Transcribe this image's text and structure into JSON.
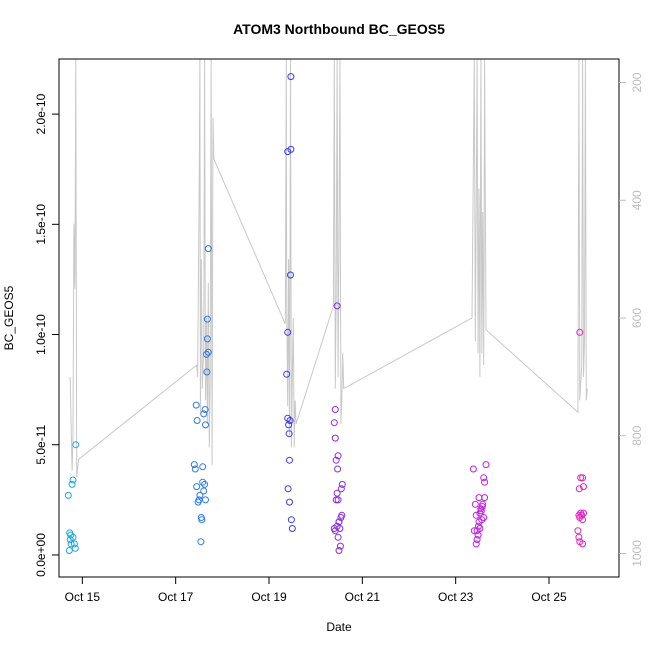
{
  "chart_data": {
    "type": "scatter",
    "title": "ATOM3 Northbound BC_GEOS5",
    "xlabel": "Date",
    "ylabel": "BC_GEOS5",
    "xlim": [
      14.5,
      26.5
    ],
    "ylim": [
      -1e-11,
      2.25e-10
    ],
    "x_ticks": [
      {
        "value": 15,
        "label": "Oct 15"
      },
      {
        "value": 17,
        "label": "Oct 17"
      },
      {
        "value": 19,
        "label": "Oct 19"
      },
      {
        "value": 21,
        "label": "Oct 21"
      },
      {
        "value": 23,
        "label": "Oct 23"
      },
      {
        "value": 25,
        "label": "Oct 25"
      }
    ],
    "y_ticks": [
      {
        "value": 0,
        "label": "0.0e+00"
      },
      {
        "value": 5e-11,
        "label": "5.0e-11"
      },
      {
        "value": 1e-10,
        "label": "1.0e-10"
      },
      {
        "value": 1.5e-10,
        "label": "1.5e-10"
      },
      {
        "value": 2e-10,
        "label": "2.0e-10"
      }
    ],
    "y2_lim": [
      1040,
      160
    ],
    "y2_ticks": [
      {
        "value": 200,
        "label": "200"
      },
      {
        "value": 400,
        "label": "400"
      },
      {
        "value": 600,
        "label": "600"
      },
      {
        "value": 800,
        "label": "800"
      },
      {
        "value": 1000,
        "label": "1000"
      }
    ],
    "pressure_line": [
      [
        14.74,
        700
      ],
      [
        14.76,
        780
      ],
      [
        14.78,
        860
      ],
      [
        14.8,
        800
      ],
      [
        14.82,
        440
      ],
      [
        14.84,
        550
      ],
      [
        14.86,
        100
      ],
      [
        14.88,
        870
      ],
      [
        14.92,
        840
      ],
      [
        17.45,
        680
      ],
      [
        17.47,
        700
      ],
      [
        17.5,
        420
      ],
      [
        17.52,
        100
      ],
      [
        17.53,
        760
      ],
      [
        17.55,
        500
      ],
      [
        17.57,
        720
      ],
      [
        17.6,
        650
      ],
      [
        17.62,
        100
      ],
      [
        17.64,
        740
      ],
      [
        17.66,
        600
      ],
      [
        17.68,
        780
      ],
      [
        17.7,
        540
      ],
      [
        17.72,
        820
      ],
      [
        17.74,
        700
      ],
      [
        17.76,
        100
      ],
      [
        17.78,
        850
      ],
      [
        17.8,
        260
      ],
      [
        17.82,
        330
      ],
      [
        19.35,
        610
      ],
      [
        19.37,
        100
      ],
      [
        19.38,
        580
      ],
      [
        19.4,
        750
      ],
      [
        19.42,
        500
      ],
      [
        19.44,
        800
      ],
      [
        19.46,
        100
      ],
      [
        19.48,
        820
      ],
      [
        19.5,
        700
      ],
      [
        19.52,
        600
      ],
      [
        19.54,
        820
      ],
      [
        19.56,
        740
      ],
      [
        19.58,
        780
      ],
      [
        20.38,
        580
      ],
      [
        20.4,
        100
      ],
      [
        20.42,
        720
      ],
      [
        20.44,
        560
      ],
      [
        20.46,
        100
      ],
      [
        20.48,
        700
      ],
      [
        20.5,
        460
      ],
      [
        20.52,
        100
      ],
      [
        20.54,
        780
      ],
      [
        20.56,
        740
      ],
      [
        20.58,
        660
      ],
      [
        20.6,
        720
      ],
      [
        23.35,
        600
      ],
      [
        23.4,
        100
      ],
      [
        23.42,
        640
      ],
      [
        23.44,
        420
      ],
      [
        23.46,
        100
      ],
      [
        23.48,
        660
      ],
      [
        23.5,
        380
      ],
      [
        23.52,
        700
      ],
      [
        23.54,
        100
      ],
      [
        23.56,
        660
      ],
      [
        23.58,
        420
      ],
      [
        23.6,
        680
      ],
      [
        23.62,
        100
      ],
      [
        23.65,
        620
      ],
      [
        25.62,
        760
      ],
      [
        25.64,
        100
      ],
      [
        25.66,
        740
      ],
      [
        25.7,
        680
      ],
      [
        25.72,
        100
      ],
      [
        25.74,
        700
      ],
      [
        25.76,
        640
      ],
      [
        25.78,
        100
      ],
      [
        25.8,
        740
      ],
      [
        25.82,
        720
      ]
    ],
    "points": [
      {
        "x": 14.7,
        "y": 2.7e-11,
        "color": "#1EA7E1"
      },
      {
        "x": 14.75,
        "y": 9e-12,
        "color": "#1EA7E1"
      },
      {
        "x": 14.74,
        "y": 7e-12,
        "color": "#1EA7E1"
      },
      {
        "x": 14.76,
        "y": 5e-12,
        "color": "#1EA7E1"
      },
      {
        "x": 14.78,
        "y": 3.2e-11,
        "color": "#1EA7E1"
      },
      {
        "x": 14.8,
        "y": 3.4e-11,
        "color": "#1EA7E1"
      },
      {
        "x": 14.8,
        "y": 8e-12,
        "color": "#1EA7E1"
      },
      {
        "x": 14.83,
        "y": 5e-12,
        "color": "#1EA7E1"
      },
      {
        "x": 14.85,
        "y": 3e-12,
        "color": "#1EA7E1"
      },
      {
        "x": 14.72,
        "y": 2e-12,
        "color": "#1EA7E1"
      },
      {
        "x": 14.73,
        "y": 1e-11,
        "color": "#1EA7E1"
      },
      {
        "x": 14.86,
        "y": 5e-11,
        "color": "#1EA7E1"
      },
      {
        "x": 17.4,
        "y": 4.1e-11,
        "color": "#2E7BE6"
      },
      {
        "x": 17.42,
        "y": 3.9e-11,
        "color": "#2E7BE6"
      },
      {
        "x": 17.45,
        "y": 3.1e-11,
        "color": "#2E7BE6"
      },
      {
        "x": 17.48,
        "y": 2.4e-11,
        "color": "#2E7BE6"
      },
      {
        "x": 17.5,
        "y": 2.5e-11,
        "color": "#2E7BE6"
      },
      {
        "x": 17.52,
        "y": 2.7e-11,
        "color": "#2E7BE6"
      },
      {
        "x": 17.55,
        "y": 1.7e-11,
        "color": "#2E7BE6"
      },
      {
        "x": 17.56,
        "y": 1.6e-11,
        "color": "#2E7BE6"
      },
      {
        "x": 17.58,
        "y": 3.3e-11,
        "color": "#2E7BE6"
      },
      {
        "x": 17.6,
        "y": 2.9e-11,
        "color": "#2E7BE6"
      },
      {
        "x": 17.62,
        "y": 3.2e-11,
        "color": "#2E7BE6"
      },
      {
        "x": 17.64,
        "y": 2.5e-11,
        "color": "#2E7BE6"
      },
      {
        "x": 17.44,
        "y": 6.8e-11,
        "color": "#2E7BE6"
      },
      {
        "x": 17.46,
        "y": 6.1e-11,
        "color": "#2E7BE6"
      },
      {
        "x": 17.58,
        "y": 4e-11,
        "color": "#2E7BE6"
      },
      {
        "x": 17.6,
        "y": 6.4e-11,
        "color": "#2E7BE6"
      },
      {
        "x": 17.63,
        "y": 6.6e-11,
        "color": "#2E7BE6"
      },
      {
        "x": 17.64,
        "y": 5.9e-11,
        "color": "#2E7BE6"
      },
      {
        "x": 17.66,
        "y": 9.1e-11,
        "color": "#2E7BE6"
      },
      {
        "x": 17.7,
        "y": 9.2e-11,
        "color": "#2E7BE6"
      },
      {
        "x": 17.68,
        "y": 9.8e-11,
        "color": "#2E7BE6"
      },
      {
        "x": 17.67,
        "y": 8.3e-11,
        "color": "#2E7BE6"
      },
      {
        "x": 17.68,
        "y": 1.07e-10,
        "color": "#2E7BE6"
      },
      {
        "x": 17.7,
        "y": 1.39e-10,
        "color": "#2E7BE6"
      },
      {
        "x": 17.54,
        "y": 6e-12,
        "color": "#2E7BE6"
      },
      {
        "x": 19.38,
        "y": 8.2e-11,
        "color": "#3A3AF0"
      },
      {
        "x": 19.4,
        "y": 1.01e-10,
        "color": "#3A3AF0"
      },
      {
        "x": 19.4,
        "y": 6.2e-11,
        "color": "#3A3AF0"
      },
      {
        "x": 19.42,
        "y": 5.9e-11,
        "color": "#3A3AF0"
      },
      {
        "x": 19.45,
        "y": 6.1e-11,
        "color": "#3A3AF0"
      },
      {
        "x": 19.43,
        "y": 5.5e-11,
        "color": "#3A3AF0"
      },
      {
        "x": 19.44,
        "y": 4.3e-11,
        "color": "#3A3AF0"
      },
      {
        "x": 19.41,
        "y": 3e-11,
        "color": "#3A3AF0"
      },
      {
        "x": 19.44,
        "y": 2.4e-11,
        "color": "#3A3AF0"
      },
      {
        "x": 19.48,
        "y": 1.6e-11,
        "color": "#3A3AF0"
      },
      {
        "x": 19.5,
        "y": 1.2e-11,
        "color": "#3A3AF0"
      },
      {
        "x": 19.4,
        "y": 1.83e-10,
        "color": "#3A3AF0"
      },
      {
        "x": 19.47,
        "y": 1.84e-10,
        "color": "#3A3AF0"
      },
      {
        "x": 19.46,
        "y": 1.27e-10,
        "color": "#3A3AF0"
      },
      {
        "x": 19.47,
        "y": 2.17e-10,
        "color": "#3A3AF0"
      },
      {
        "x": 20.4,
        "y": 1.2e-11,
        "color": "#8A2BE2"
      },
      {
        "x": 20.42,
        "y": 1.1e-11,
        "color": "#8A2BE2"
      },
      {
        "x": 20.46,
        "y": 1.3e-11,
        "color": "#8A2BE2"
      },
      {
        "x": 20.48,
        "y": 8e-12,
        "color": "#8A2BE2"
      },
      {
        "x": 20.5,
        "y": 1.5e-11,
        "color": "#8A2BE2"
      },
      {
        "x": 20.52,
        "y": 1.2e-11,
        "color": "#8A2BE2"
      },
      {
        "x": 20.54,
        "y": 1.7e-11,
        "color": "#8A2BE2"
      },
      {
        "x": 20.56,
        "y": 1.8e-11,
        "color": "#8A2BE2"
      },
      {
        "x": 20.5,
        "y": 1.5e-11,
        "color": "#8A2BE2"
      },
      {
        "x": 20.48,
        "y": 2.5e-11,
        "color": "#8A2BE2"
      },
      {
        "x": 20.46,
        "y": 2.8e-11,
        "color": "#8A2BE2"
      },
      {
        "x": 20.55,
        "y": 3e-11,
        "color": "#8A2BE2"
      },
      {
        "x": 20.57,
        "y": 3.2e-11,
        "color": "#8A2BE2"
      },
      {
        "x": 20.44,
        "y": 4.3e-11,
        "color": "#8A2BE2"
      },
      {
        "x": 20.48,
        "y": 4.5e-11,
        "color": "#8A2BE2"
      },
      {
        "x": 20.42,
        "y": 5.3e-11,
        "color": "#8A2BE2"
      },
      {
        "x": 20.4,
        "y": 6e-11,
        "color": "#8A2BE2"
      },
      {
        "x": 20.42,
        "y": 6.6e-11,
        "color": "#8A2BE2"
      },
      {
        "x": 20.47,
        "y": 3.9e-11,
        "color": "#8A2BE2"
      },
      {
        "x": 20.5,
        "y": 2e-12,
        "color": "#8A2BE2"
      },
      {
        "x": 20.53,
        "y": 4e-12,
        "color": "#8A2BE2"
      },
      {
        "x": 20.46,
        "y": 1.13e-10,
        "color": "#8A2BE2"
      },
      {
        "x": 20.44,
        "y": 2.5e-11,
        "color": "#8A2BE2"
      },
      {
        "x": 23.4,
        "y": 1.1e-11,
        "color": "#C01FE0"
      },
      {
        "x": 23.42,
        "y": 2.3e-11,
        "color": "#C01FE0"
      },
      {
        "x": 23.44,
        "y": 1.8e-11,
        "color": "#C01FE0"
      },
      {
        "x": 23.46,
        "y": 1.1e-11,
        "color": "#C01FE0"
      },
      {
        "x": 23.48,
        "y": 9e-12,
        "color": "#C01FE0"
      },
      {
        "x": 23.5,
        "y": 1.5e-11,
        "color": "#C01FE0"
      },
      {
        "x": 23.52,
        "y": 1.9e-11,
        "color": "#C01FE0"
      },
      {
        "x": 23.54,
        "y": 2.1e-11,
        "color": "#C01FE0"
      },
      {
        "x": 23.56,
        "y": 1.6e-11,
        "color": "#C01FE0"
      },
      {
        "x": 23.58,
        "y": 2.3e-11,
        "color": "#C01FE0"
      },
      {
        "x": 23.6,
        "y": 1.7e-11,
        "color": "#C01FE0"
      },
      {
        "x": 23.5,
        "y": 2.6e-11,
        "color": "#C01FE0"
      },
      {
        "x": 23.62,
        "y": 2.6e-11,
        "color": "#C01FE0"
      },
      {
        "x": 23.55,
        "y": 2e-11,
        "color": "#C01FE0"
      },
      {
        "x": 23.44,
        "y": 5e-12,
        "color": "#C01FE0"
      },
      {
        "x": 23.46,
        "y": 7e-12,
        "color": "#C01FE0"
      },
      {
        "x": 23.52,
        "y": 1.2e-11,
        "color": "#C01FE0"
      },
      {
        "x": 23.6,
        "y": 3.5e-11,
        "color": "#C01FE0"
      },
      {
        "x": 23.62,
        "y": 3.3e-11,
        "color": "#C01FE0"
      },
      {
        "x": 23.65,
        "y": 4.1e-11,
        "color": "#C01FE0"
      },
      {
        "x": 23.38,
        "y": 3.9e-11,
        "color": "#C01FE0"
      },
      {
        "x": 23.49,
        "y": 1.3e-11,
        "color": "#C01FE0"
      },
      {
        "x": 23.57,
        "y": 2.2e-11,
        "color": "#C01FE0"
      },
      {
        "x": 25.64,
        "y": 1.8e-11,
        "color": "#E11FC0"
      },
      {
        "x": 25.66,
        "y": 1.7e-11,
        "color": "#E11FC0"
      },
      {
        "x": 25.68,
        "y": 1.9e-11,
        "color": "#E11FC0"
      },
      {
        "x": 25.7,
        "y": 1.8e-11,
        "color": "#E11FC0"
      },
      {
        "x": 25.72,
        "y": 1.6e-11,
        "color": "#E11FC0"
      },
      {
        "x": 25.74,
        "y": 1.9e-11,
        "color": "#E11FC0"
      },
      {
        "x": 25.65,
        "y": 3e-11,
        "color": "#E11FC0"
      },
      {
        "x": 25.68,
        "y": 3.5e-11,
        "color": "#E11FC0"
      },
      {
        "x": 25.72,
        "y": 3.5e-11,
        "color": "#E11FC0"
      },
      {
        "x": 25.74,
        "y": 3.1e-11,
        "color": "#E11FC0"
      },
      {
        "x": 25.62,
        "y": 1.1e-11,
        "color": "#E11FC0"
      },
      {
        "x": 25.64,
        "y": 8e-12,
        "color": "#E11FC0"
      },
      {
        "x": 25.66,
        "y": 6e-12,
        "color": "#E11FC0"
      },
      {
        "x": 25.72,
        "y": 5e-12,
        "color": "#E11FC0"
      },
      {
        "x": 25.66,
        "y": 1.01e-10,
        "color": "#E11FC0"
      }
    ],
    "line_color": "#c8c8c8",
    "grid": false,
    "legend": "none"
  }
}
